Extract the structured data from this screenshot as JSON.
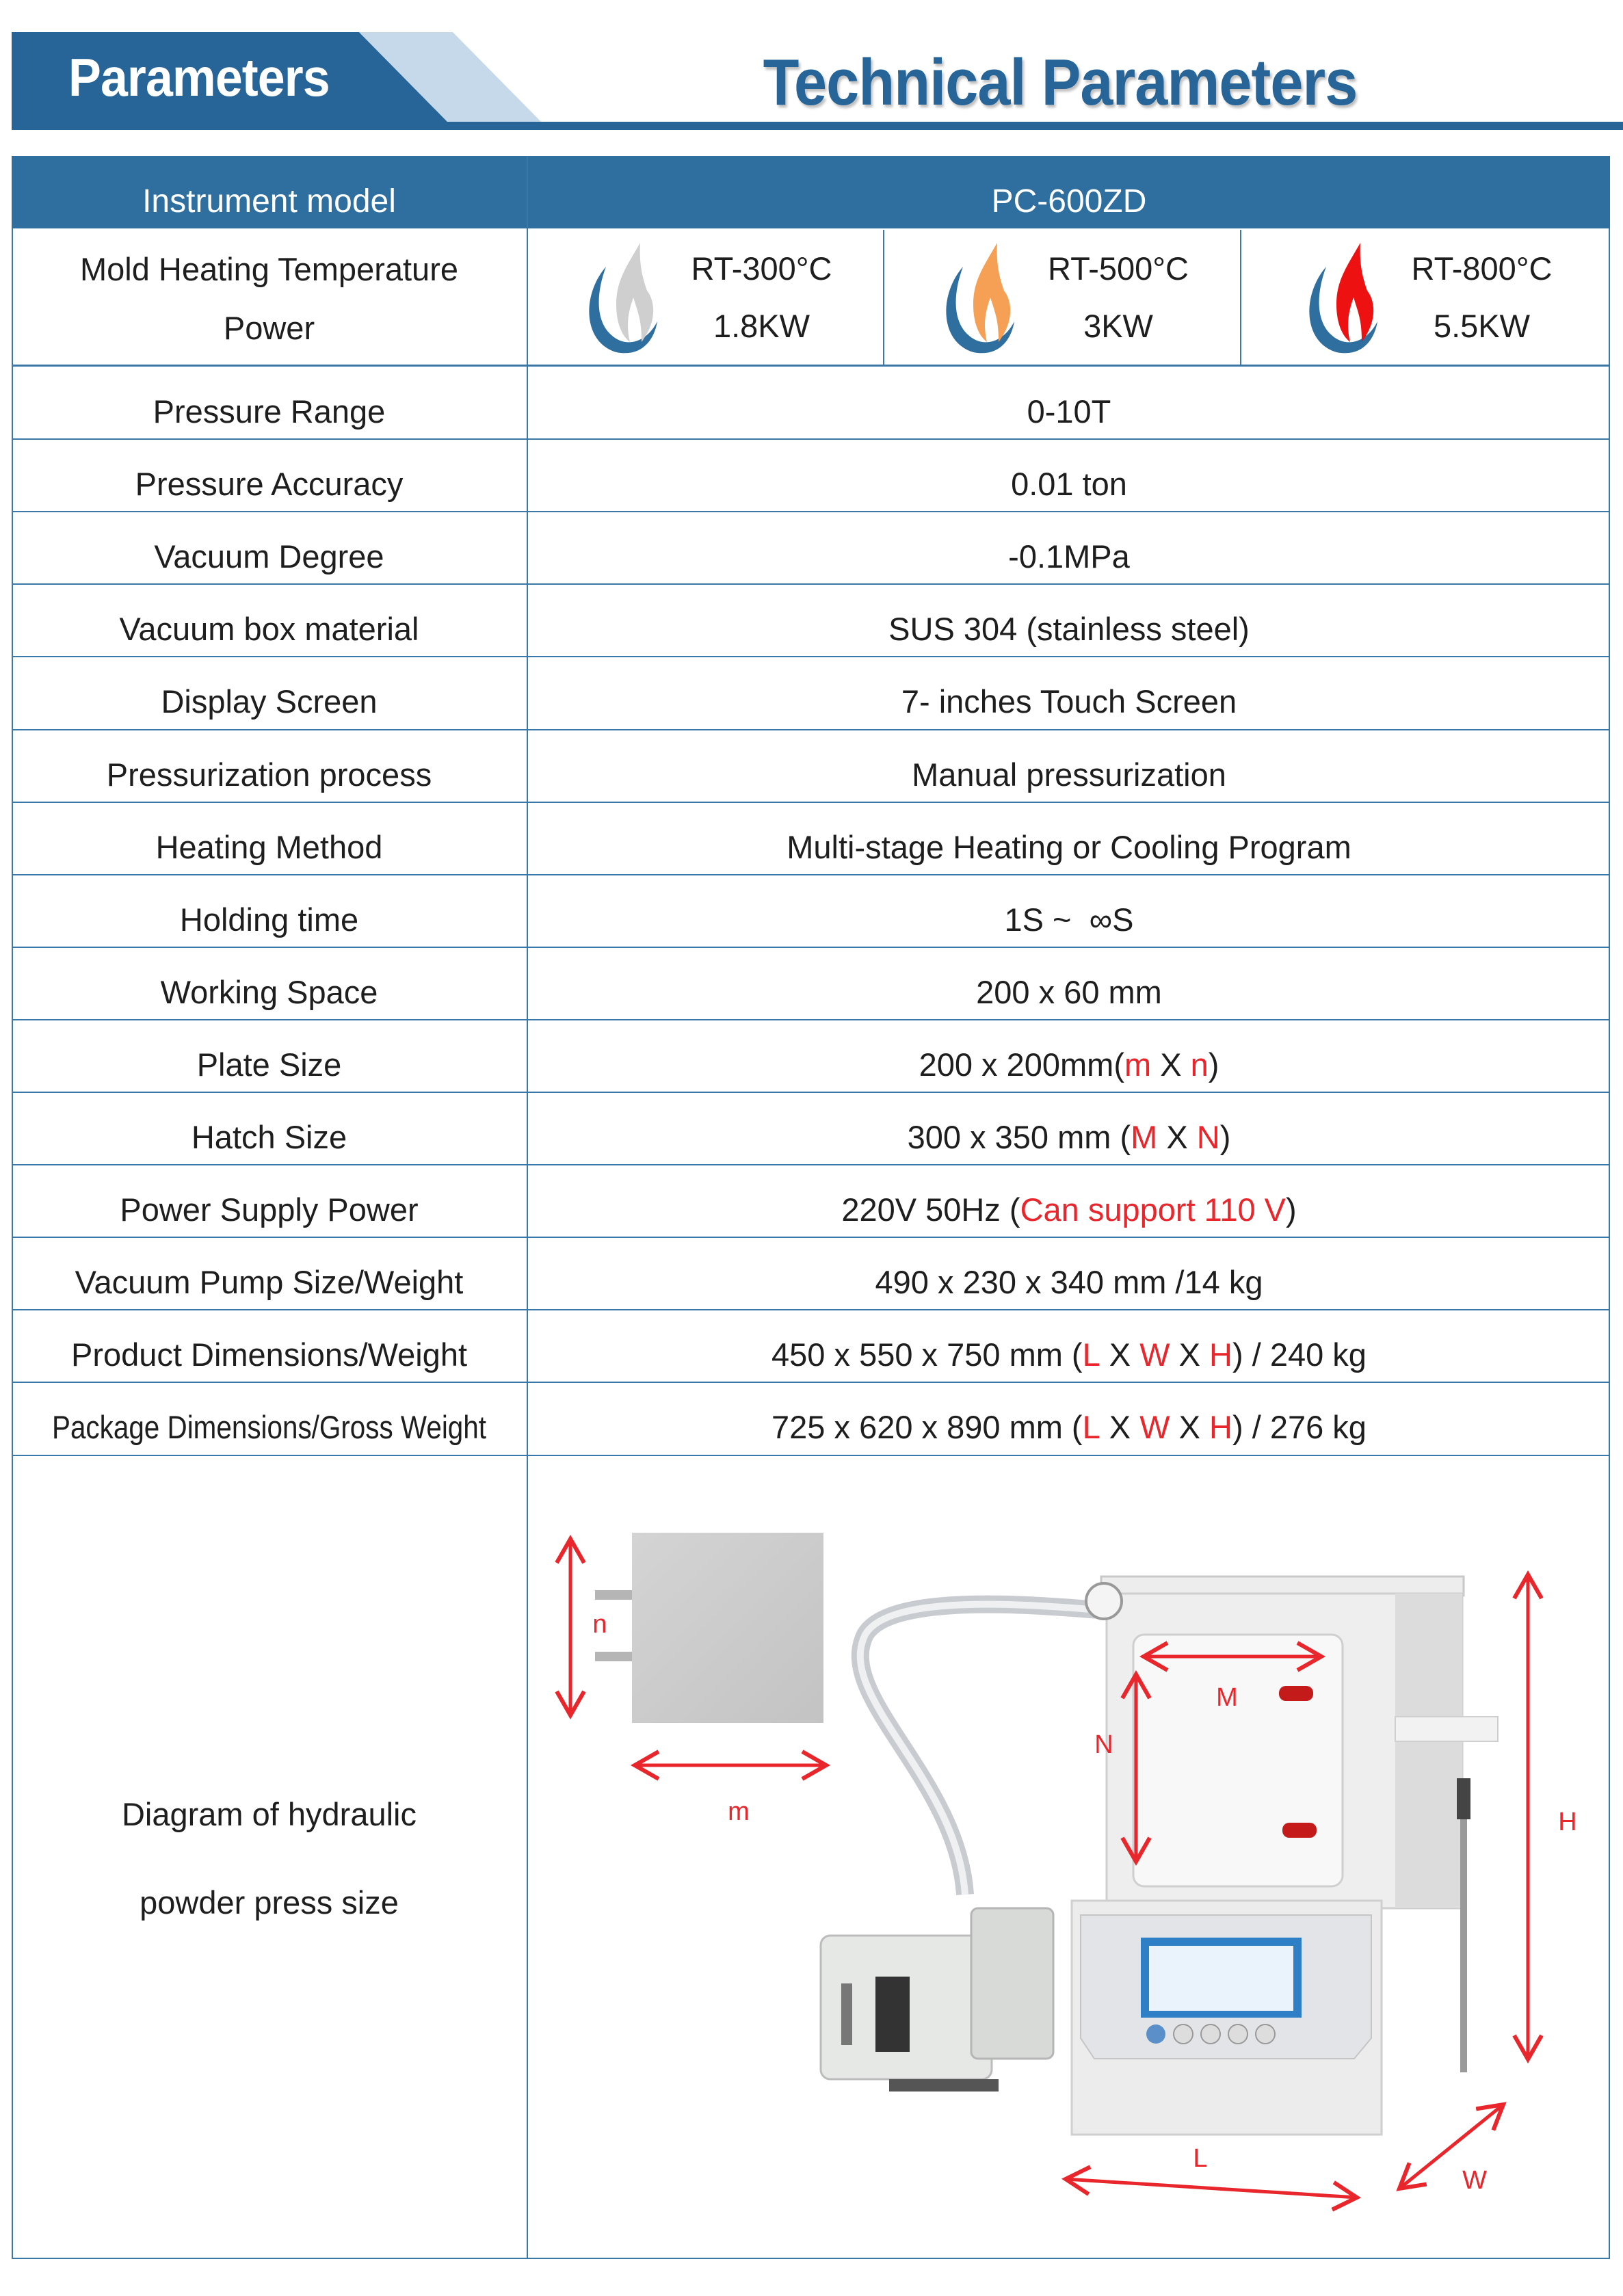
{
  "header": {
    "badge": "Parameters",
    "title": "Technical Parameters",
    "brand_color": "#2e6fa0",
    "accent_light": "#c5d9ea"
  },
  "table": {
    "head": {
      "label": "Instrument model",
      "value": "PC-600ZD"
    },
    "heating": {
      "label_line1": "Mold Heating Temperature",
      "label_line2": "Power",
      "options": [
        {
          "temp": "RT-300°C",
          "power": "1.8KW",
          "icon": "flame-icon-grey",
          "flame_color": "#cfcfcf"
        },
        {
          "temp": "RT-500°C",
          "power": "3KW",
          "icon": "flame-icon-orange",
          "flame_color": "#f5a055"
        },
        {
          "temp": "RT-800°C",
          "power": "5.5KW",
          "icon": "flame-icon-red",
          "flame_color": "#ee1111"
        }
      ]
    },
    "rows": [
      {
        "label": "Pressure Range",
        "value": [
          {
            "t": "0-10T"
          }
        ]
      },
      {
        "label": "Pressure Accuracy",
        "value": [
          {
            "t": "0.01 ton"
          }
        ]
      },
      {
        "label": "Vacuum Degree",
        "value": [
          {
            "t": "-0.1MPa"
          }
        ]
      },
      {
        "label": "Vacuum box material",
        "value": [
          {
            "t": "SUS 304 (stainless steel)"
          }
        ]
      },
      {
        "label": "Display Screen",
        "value": [
          {
            "t": "7- inches Touch Screen"
          }
        ]
      },
      {
        "label": "Pressurization process",
        "value": [
          {
            "t": "Manual pressurization"
          }
        ]
      },
      {
        "label": "Heating Method",
        "value": [
          {
            "t": "Multi-stage Heating or Cooling Program"
          }
        ]
      },
      {
        "label": "Holding time",
        "value": [
          {
            "t": "1S ~  ∞S"
          }
        ]
      },
      {
        "label": "Working Space",
        "value": [
          {
            "t": "200 x 60 mm"
          }
        ]
      },
      {
        "label": "Plate Size",
        "value": [
          {
            "t": "200 x 200mm("
          },
          {
            "t": "m",
            "red": true
          },
          {
            "t": " X "
          },
          {
            "t": "n",
            "red": true
          },
          {
            "t": ")"
          }
        ]
      },
      {
        "label": "Hatch Size",
        "value": [
          {
            "t": "300 x 350 mm ("
          },
          {
            "t": "M",
            "red": true
          },
          {
            "t": " X "
          },
          {
            "t": "N",
            "red": true
          },
          {
            "t": ")"
          }
        ]
      },
      {
        "label": "Power Supply Power",
        "value": [
          {
            "t": "220V 50Hz ("
          },
          {
            "t": "Can support 110 V",
            "red": true
          },
          {
            "t": ")"
          }
        ]
      },
      {
        "label": "Vacuum Pump Size/Weight",
        "value": [
          {
            "t": "490 x 230 x 340 mm /14 kg"
          }
        ]
      },
      {
        "label": "Product Dimensions/Weight",
        "value": [
          {
            "t": "450 x 550 x 750 mm ("
          },
          {
            "t": "L",
            "red": true
          },
          {
            "t": " X "
          },
          {
            "t": "W",
            "red": true
          },
          {
            "t": " X "
          },
          {
            "t": "H",
            "red": true
          },
          {
            "t": ") / 240 kg"
          }
        ]
      },
      {
        "label": "Package Dimensions/Gross Weight",
        "narrow": true,
        "value": [
          {
            "t": "725 x 620 x 890 mm ("
          },
          {
            "t": "L",
            "red": true
          },
          {
            "t": " X "
          },
          {
            "t": "W",
            "red": true
          },
          {
            "t": " X "
          },
          {
            "t": "H",
            "red": true
          },
          {
            "t": ") / 276 kg"
          }
        ]
      }
    ],
    "diagram": {
      "label_line1": "Diagram of hydraulic",
      "label_line2": "powder press size",
      "dim_labels": {
        "n": "n",
        "m": "m",
        "M": "M",
        "N": "N",
        "H": "H",
        "L": "L",
        "W": "W"
      },
      "arrow_color": "#e8262b"
    }
  }
}
